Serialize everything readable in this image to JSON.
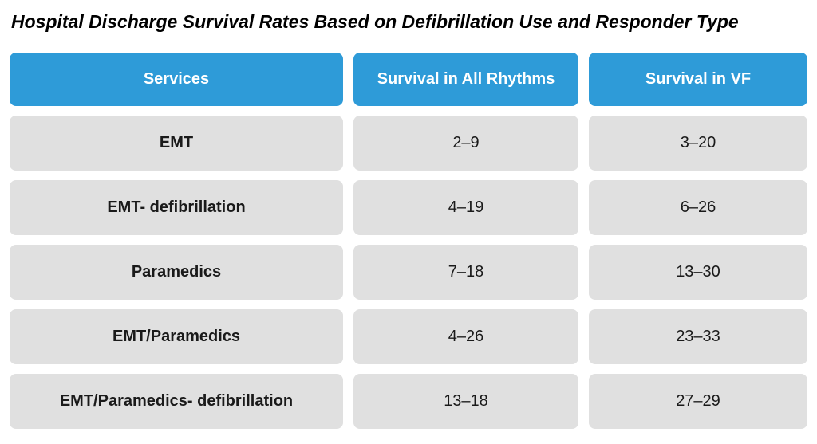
{
  "title": "Hospital Discharge Survival Rates Based on Defibrillation Use and Responder Type",
  "colors": {
    "header_bg": "#2E9BD8",
    "header_text": "#FFFFFF",
    "cell_bg": "#E0E0E0",
    "cell_text": "#1A1A1A",
    "title_text": "#000000"
  },
  "chart_data": {
    "type": "table",
    "title": "Hospital Discharge Survival Rates Based on Defibrillation Use and Responder Type",
    "columns": [
      "Services",
      "Survival in All Rhythms",
      "Survival in VF"
    ],
    "rows": [
      [
        "EMT",
        "2–9",
        "3–20"
      ],
      [
        "EMT- defibrillation",
        "4–19",
        "6–26"
      ],
      [
        "Paramedics",
        "7–18",
        "13–30"
      ],
      [
        "EMT/Paramedics",
        "4–26",
        "23–33"
      ],
      [
        "EMT/Paramedics- defibrillation",
        "13–18",
        "27–29"
      ]
    ]
  }
}
